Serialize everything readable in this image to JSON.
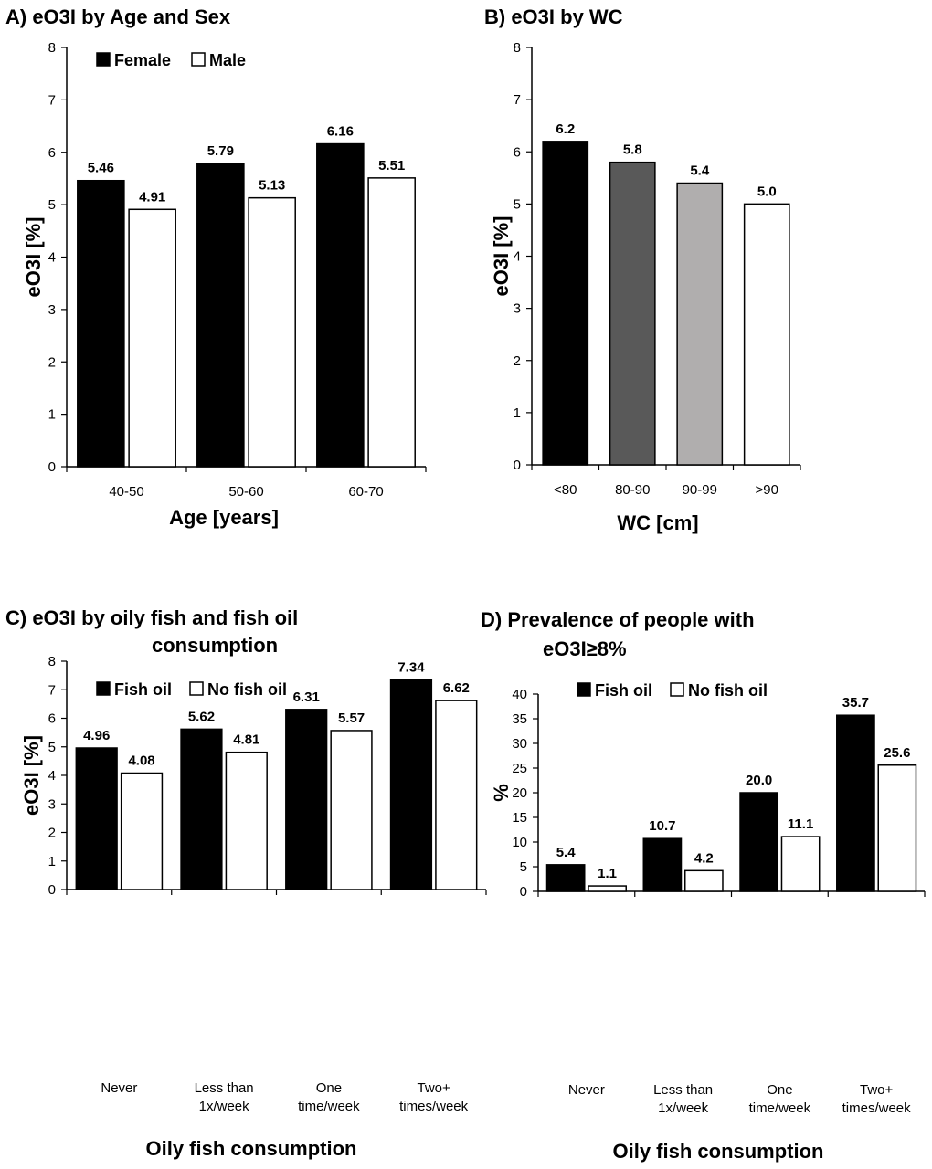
{
  "chart_data": [
    {
      "type": "bar",
      "title": "A) eO3I by Age and Sex",
      "xlabel": "Age [years]",
      "ylabel": "eO3I [%]",
      "ylim": [
        0,
        8
      ],
      "yticks": [
        0,
        1,
        2,
        3,
        4,
        5,
        6,
        7,
        8
      ],
      "categories": [
        "40-50",
        "50-60",
        "60-70"
      ],
      "series": [
        {
          "name": "Female",
          "color": "#000000",
          "values": [
            5.46,
            5.79,
            6.16
          ],
          "labels": [
            "5.46",
            "5.79",
            "6.16"
          ]
        },
        {
          "name": "Male",
          "color": "#ffffff",
          "values": [
            4.91,
            5.13,
            5.51
          ],
          "labels": [
            "4.91",
            "5.13",
            "5.51"
          ]
        }
      ],
      "legend": "top-left"
    },
    {
      "type": "bar",
      "title": "B) eO3I by WC",
      "xlabel": "WC [cm]",
      "ylabel": "eO3I [%]",
      "ylim": [
        0,
        8
      ],
      "yticks": [
        0,
        1,
        2,
        3,
        4,
        5,
        6,
        7,
        8
      ],
      "categories": [
        "<80",
        "80-90",
        "90-99",
        ">90"
      ],
      "colors": [
        "#000000",
        "#595959",
        "#b0aeae",
        "#ffffff"
      ],
      "values": [
        6.2,
        5.8,
        5.4,
        5.0
      ],
      "labels": [
        "6.2",
        "5.8",
        "5.4",
        "5.0"
      ]
    },
    {
      "type": "bar",
      "title": "C) eO3I by oily fish and fish oil consumption",
      "title_lines": [
        "C) eO3I by oily fish and fish oil",
        "consumption"
      ],
      "xlabel": "Oily fish consumption",
      "ylabel": "eO3I [%]",
      "ylim": [
        0,
        8
      ],
      "yticks": [
        0,
        1,
        2,
        3,
        4,
        5,
        6,
        7,
        8
      ],
      "categories": [
        "Never",
        "Less than 1x/week",
        "One time/week",
        "Two+ times/week"
      ],
      "category_lines": [
        [
          "Never"
        ],
        [
          "Less than",
          "1x/week"
        ],
        [
          "One",
          "time/week"
        ],
        [
          "Two+",
          "times/week"
        ]
      ],
      "series": [
        {
          "name": "Fish oil",
          "color": "#000000",
          "values": [
            4.96,
            5.62,
            6.31,
            7.34
          ],
          "labels": [
            "4.96",
            "5.62",
            "6.31",
            "7.34"
          ]
        },
        {
          "name": "No fish oil",
          "color": "#ffffff",
          "values": [
            4.08,
            4.81,
            5.57,
            6.62
          ],
          "labels": [
            "4.08",
            "4.81",
            "5.57",
            "6.62"
          ]
        }
      ],
      "legend": "top-left"
    },
    {
      "type": "bar",
      "title": "D) Prevalence of people with eO3I≥8%",
      "title_lines": [
        "D) Prevalence of people with",
        "eO3I≥8%"
      ],
      "xlabel": "Oily fish consumption",
      "ylabel": "%",
      "ylim": [
        0,
        40
      ],
      "yticks": [
        0,
        5,
        10,
        15,
        20,
        25,
        30,
        35,
        40
      ],
      "categories": [
        "Never",
        "Less than 1x/week",
        "One time/week",
        "Two+ times/week"
      ],
      "category_lines": [
        [
          "Never"
        ],
        [
          "Less than",
          "1x/week"
        ],
        [
          "One",
          "time/week"
        ],
        [
          "Two+",
          "times/week"
        ]
      ],
      "series": [
        {
          "name": "Fish oil",
          "color": "#000000",
          "values": [
            5.4,
            10.7,
            20.0,
            35.7
          ],
          "labels": [
            "5.4",
            "10.7",
            "20.0",
            "35.7"
          ]
        },
        {
          "name": "No fish oil",
          "color": "#ffffff",
          "values": [
            1.1,
            4.2,
            11.1,
            25.6
          ],
          "labels": [
            "1.1",
            "4.2",
            "11.1",
            "25.6"
          ]
        }
      ],
      "legend": "top-left"
    }
  ]
}
